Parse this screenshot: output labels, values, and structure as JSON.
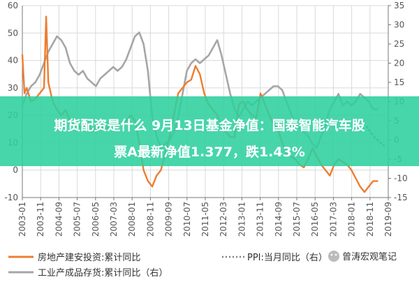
{
  "colors": {
    "left_series": "#ed7d31",
    "right_series": "#a6a6a6",
    "ppi_series": "#7f7f7f",
    "banner_bg": "#2ecf9e",
    "axis": "#777777",
    "text": "#555555"
  },
  "banner": {
    "line1": "期货配资是什么 9月13日基金净值：国泰智能汽车股",
    "line2": "票A最新净值1.377，跌1.43%"
  },
  "legend": {
    "item1": "房地产建安投资:累计同比",
    "item2": "工业产成品存货:累计同比（右）",
    "item3": "PPI:当月同比（右）",
    "watermark": "曾涛宏观笔记",
    "watermark_icon": "wechat-icon"
  },
  "chart_data": {
    "type": "line",
    "x_tick_labels": [
      "2003-01",
      "2003-11",
      "2004-09",
      "2005-07",
      "2006-05",
      "2007-03",
      "2008-01",
      "2008-11",
      "2009-09",
      "2010-07",
      "2011-05",
      "2012-03",
      "2013-01",
      "2013-11",
      "2014-09",
      "2015-07",
      "2016-05",
      "2017-03",
      "2018-01",
      "2018-11",
      "2019-09"
    ],
    "left_axis": {
      "ylim": [
        -10,
        60
      ],
      "ticks": [
        -10,
        0,
        10,
        20,
        30,
        40,
        50,
        60
      ]
    },
    "right_axis": {
      "ylim": [
        -15,
        35
      ],
      "ticks": [
        -15,
        -10,
        -5,
        0,
        5,
        10,
        15,
        20,
        25,
        30,
        35
      ]
    },
    "series": [
      {
        "name": "房地产建安投资:累计同比",
        "axis": "left",
        "style": "solid",
        "x": [
          2003.0,
          2003.1,
          2003.2,
          2003.4,
          2003.6,
          2003.8,
          2004.0,
          2004.1,
          2004.2,
          2004.4,
          2004.6,
          2004.8,
          2005.0,
          2005.2,
          2005.4,
          2005.6,
          2005.8,
          2006.0,
          2006.2,
          2006.4,
          2006.6,
          2006.8,
          2007.0,
          2007.2,
          2007.4,
          2007.6,
          2007.8,
          2008.0,
          2008.2,
          2008.4,
          2008.6,
          2008.8,
          2009.0,
          2009.2,
          2009.4,
          2009.6,
          2009.8,
          2010.0,
          2010.2,
          2010.4,
          2010.6,
          2010.8,
          2011.0,
          2011.2,
          2011.4,
          2011.6,
          2011.8,
          2012.0,
          2012.2,
          2012.4,
          2012.6,
          2012.8,
          2013.0,
          2013.2,
          2013.4,
          2013.6,
          2013.8,
          2014.0,
          2014.2,
          2014.4,
          2014.6,
          2014.8,
          2015.0,
          2015.2,
          2015.4,
          2015.6,
          2015.8,
          2016.0,
          2016.2,
          2016.4,
          2016.6,
          2016.8,
          2017.0,
          2017.2,
          2017.4,
          2017.6,
          2017.8,
          2018.0,
          2018.2,
          2018.4,
          2018.6,
          2018.8,
          2019.0,
          2019.2,
          2019.4
        ],
        "values": [
          42,
          28,
          30,
          25,
          26,
          28,
          30,
          56,
          32,
          25,
          22,
          20,
          22,
          18,
          17,
          16,
          15,
          18,
          14,
          15,
          16,
          15,
          16,
          17,
          16,
          17,
          18,
          20,
          18,
          10,
          0,
          -4,
          -6,
          -2,
          0,
          6,
          12,
          20,
          28,
          30,
          32,
          33,
          38,
          35,
          28,
          24,
          22,
          20,
          15,
          14,
          12,
          12,
          24,
          25,
          22,
          20,
          19,
          28,
          24,
          20,
          17,
          15,
          10,
          6,
          5,
          4,
          2,
          1,
          4,
          8,
          5,
          2,
          0,
          -2,
          2,
          4,
          3,
          2,
          0,
          -3,
          -6,
          -8,
          -6,
          -4,
          -4
        ]
      },
      {
        "name": "工业产成品存货:累计同比（右）",
        "axis": "right",
        "style": "solid",
        "x": [
          2003.0,
          2003.2,
          2003.4,
          2003.6,
          2003.8,
          2004.0,
          2004.2,
          2004.4,
          2004.6,
          2004.8,
          2005.0,
          2005.2,
          2005.4,
          2005.6,
          2005.8,
          2006.0,
          2006.2,
          2006.4,
          2006.6,
          2006.8,
          2007.0,
          2007.2,
          2007.4,
          2007.6,
          2007.8,
          2008.0,
          2008.2,
          2008.4,
          2008.6,
          2008.8,
          2009.0,
          2009.2,
          2009.4,
          2009.6,
          2009.8,
          2010.0,
          2010.2,
          2010.4,
          2010.6,
          2010.8,
          2011.0,
          2011.2,
          2011.4,
          2011.6,
          2011.8,
          2012.0,
          2012.2,
          2012.4,
          2012.6,
          2012.8,
          2013.0,
          2013.2,
          2013.4,
          2013.6,
          2013.8,
          2014.0,
          2014.2,
          2014.4,
          2014.6,
          2014.8,
          2015.0,
          2015.2,
          2015.4,
          2015.6,
          2015.8,
          2016.0,
          2016.2,
          2016.4,
          2016.6,
          2016.8,
          2017.0,
          2017.2,
          2017.4,
          2017.6,
          2017.8,
          2018.0,
          2018.2,
          2018.4,
          2018.6,
          2018.8,
          2019.0,
          2019.2,
          2019.4
        ],
        "values": [
          9,
          12,
          14,
          15,
          17,
          20,
          23,
          25,
          27,
          26,
          24,
          20,
          18,
          17,
          18,
          16,
          15,
          14,
          16,
          17,
          18,
          19,
          18,
          19,
          21,
          24,
          27,
          28,
          25,
          18,
          6,
          1,
          -2,
          -1,
          0,
          2,
          6,
          12,
          18,
          20,
          21,
          20,
          21,
          22,
          24,
          26,
          22,
          17,
          12,
          8,
          6,
          8,
          10,
          9,
          10,
          11,
          12,
          13,
          14,
          14,
          13,
          10,
          7,
          4,
          3,
          2,
          1,
          -1,
          -2,
          1,
          4,
          8,
          10,
          12,
          9,
          10,
          9,
          10,
          12,
          11,
          10,
          8,
          8
        ]
      },
      {
        "name": "PPI:当月同比（右）",
        "axis": "right",
        "style": "dotted",
        "x": [
          2018.9,
          2019.1,
          2019.3,
          2019.5,
          2019.7
        ],
        "values": [
          3.5,
          1.8,
          0.5,
          -0.5,
          -1.5
        ]
      }
    ]
  }
}
